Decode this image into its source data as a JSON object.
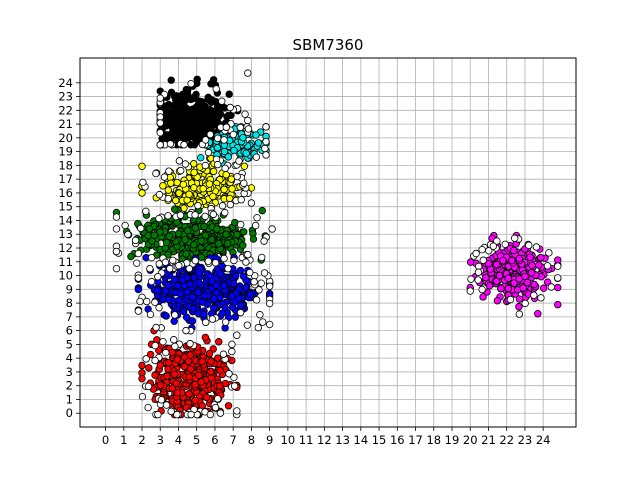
{
  "chart_data": {
    "type": "scatter",
    "title": "SBM7360",
    "xlabel": "",
    "ylabel": "",
    "xlim": [
      -1.4,
      25.8
    ],
    "ylim": [
      -1.0,
      25.8
    ],
    "x_ticks": [
      0,
      1,
      2,
      3,
      4,
      5,
      6,
      7,
      8,
      9,
      10,
      11,
      12,
      13,
      14,
      15,
      16,
      17,
      18,
      19,
      20,
      21,
      22,
      23,
      24
    ],
    "y_ticks": [
      0,
      1,
      2,
      3,
      4,
      5,
      6,
      7,
      8,
      9,
      10,
      11,
      12,
      13,
      14,
      15,
      16,
      17,
      18,
      19,
      20,
      21,
      22,
      23,
      24
    ],
    "grid": true,
    "marker": "circle",
    "marker_edge": "#000000",
    "clusters": [
      {
        "color": "#000000",
        "center": [
          4.7,
          21.5
        ],
        "rx": 2.2,
        "ry": 2.0,
        "count": 320,
        "range": {
          "x": [
            3.0,
            7.8
          ],
          "y": [
            19.5,
            24.8
          ]
        }
      },
      {
        "color": "#00e5e5",
        "center": [
          7.2,
          19.5
        ],
        "rx": 1.6,
        "ry": 1.3,
        "count": 140,
        "range": {
          "x": [
            5.0,
            8.8
          ],
          "y": [
            18.0,
            20.8
          ]
        }
      },
      {
        "color": "#ffff00",
        "center": [
          5.2,
          16.4
        ],
        "rx": 2.2,
        "ry": 1.5,
        "count": 220,
        "range": {
          "x": [
            2.0,
            8.0
          ],
          "y": [
            14.0,
            18.5
          ]
        }
      },
      {
        "color": "#007a00",
        "center": [
          4.8,
          12.7
        ],
        "rx": 3.3,
        "ry": 1.7,
        "count": 380,
        "range": {
          "x": [
            0.6,
            9.2
          ],
          "y": [
            10.5,
            15.5
          ]
        }
      },
      {
        "color": "#0000ff",
        "center": [
          5.4,
          8.9
        ],
        "rx": 3.0,
        "ry": 2.1,
        "count": 420,
        "range": {
          "x": [
            1.8,
            9.0
          ],
          "y": [
            6.2,
            11.3
          ]
        }
      },
      {
        "color": "#ff0000",
        "center": [
          4.6,
          2.6
        ],
        "rx": 2.2,
        "ry": 2.4,
        "count": 380,
        "range": {
          "x": [
            2.0,
            7.2
          ],
          "y": [
            -0.1,
            6.0
          ]
        }
      },
      {
        "color": "#ff00ff",
        "center": [
          22.4,
          10.3
        ],
        "rx": 1.9,
        "ry": 2.0,
        "count": 300,
        "range": {
          "x": [
            20.0,
            24.8
          ],
          "y": [
            7.2,
            12.9
          ]
        }
      }
    ],
    "outlier_color": "#ffffff"
  }
}
